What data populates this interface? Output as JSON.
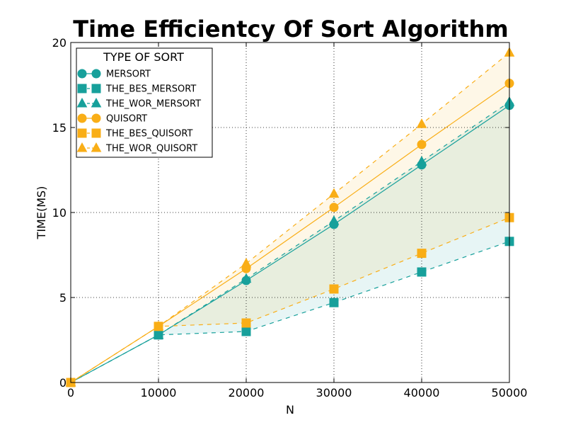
{
  "chart_data": {
    "type": "line",
    "title": "Time Efficientcy Of Sort Algorithm",
    "xlabel": "N",
    "ylabel": "TIME(MS)",
    "x": [
      0,
      10000,
      20000,
      30000,
      40000,
      50000
    ],
    "xlim": [
      0,
      50000
    ],
    "ylim": [
      0,
      20
    ],
    "xticks": [
      0,
      10000,
      20000,
      30000,
      40000,
      50000
    ],
    "yticks": [
      0,
      5,
      10,
      15,
      20
    ],
    "grid": true,
    "legend": {
      "title": "TYPE OF SORT",
      "position": "top-left"
    },
    "series": [
      {
        "name": "MERSORT",
        "color": "#17a09b",
        "marker": "circle",
        "line": "solid",
        "values": [
          0,
          2.8,
          6.0,
          9.3,
          12.8,
          16.3
        ]
      },
      {
        "name": "THE_BES_MERSORT",
        "color": "#17a09b",
        "marker": "square",
        "line": "dashed",
        "values": [
          0,
          2.8,
          3.0,
          4.7,
          6.5,
          8.3
        ]
      },
      {
        "name": "THE_WOR_MERSORT",
        "color": "#17a09b",
        "marker": "triangle",
        "line": "dashed",
        "values": [
          0,
          2.8,
          6.1,
          9.5,
          13.0,
          16.5
        ]
      },
      {
        "name": "QUISORT",
        "color": "#f9ae17",
        "marker": "circle",
        "line": "solid",
        "values": [
          0,
          3.3,
          6.7,
          10.3,
          14.0,
          17.6
        ]
      },
      {
        "name": "THE_BES_QUISORT",
        "color": "#f9ae17",
        "marker": "square",
        "line": "dashed",
        "values": [
          0,
          3.3,
          3.5,
          5.5,
          7.6,
          9.7
        ]
      },
      {
        "name": "THE_WOR_QUISORT",
        "color": "#f9ae17",
        "marker": "triangle",
        "line": "dashed",
        "values": [
          0,
          3.3,
          7.0,
          11.1,
          15.2,
          19.4
        ]
      }
    ],
    "fills": [
      {
        "between": [
          "THE_BES_MERSORT",
          "THE_WOR_MERSORT"
        ],
        "color": "#17a09b",
        "opacity": 0.1
      },
      {
        "between": [
          "THE_BES_QUISORT",
          "THE_WOR_QUISORT"
        ],
        "color": "#f9ae17",
        "opacity": 0.1
      }
    ]
  }
}
